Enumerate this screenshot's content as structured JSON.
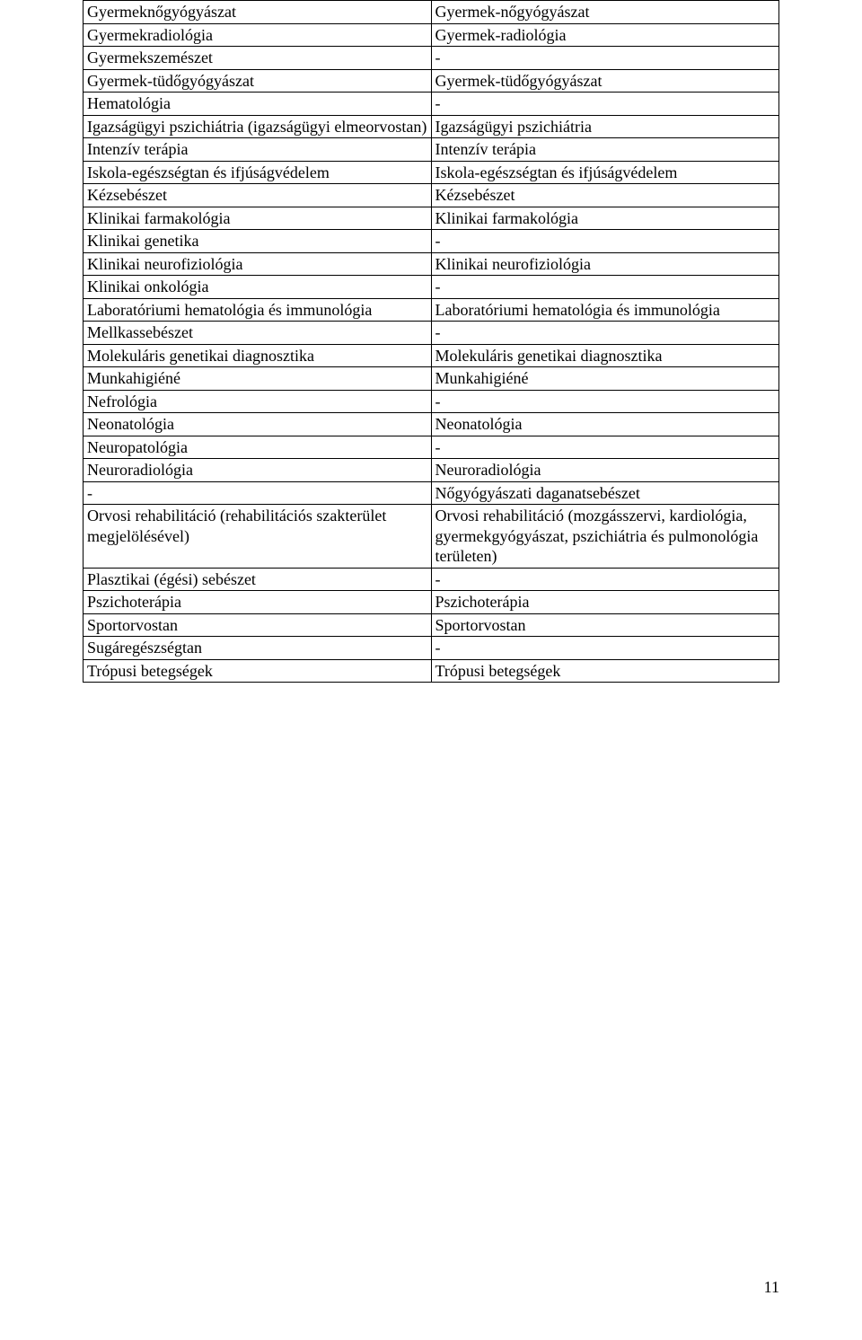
{
  "table": {
    "columns": [
      "left",
      "right"
    ],
    "rows": [
      [
        "Gyermeknőgyógyászat",
        "Gyermek-nőgyógyászat"
      ],
      [
        "Gyermekradiológia",
        "Gyermek-radiológia"
      ],
      [
        "Gyermekszemészet",
        "-"
      ],
      [
        "Gyermek-tüdőgyógyászat",
        "Gyermek-tüdőgyógyászat"
      ],
      [
        "Hematológia",
        "-"
      ],
      [
        "Igazságügyi pszichiátria (igazságügyi elmeorvostan)",
        "Igazságügyi pszichiátria"
      ],
      [
        "Intenzív terápia",
        "Intenzív terápia"
      ],
      [
        "Iskola-egészségtan és ifjúságvédelem",
        "Iskola-egészségtan és ifjúságvédelem"
      ],
      [
        "Kézsebészet",
        "Kézsebészet"
      ],
      [
        "Klinikai farmakológia",
        "Klinikai farmakológia"
      ],
      [
        "Klinikai genetika",
        "-"
      ],
      [
        "Klinikai neurofiziológia",
        "Klinikai neurofiziológia"
      ],
      [
        "Klinikai onkológia",
        "-"
      ],
      [
        "Laboratóriumi hematológia és immunológia",
        "Laboratóriumi hematológia és immunológia"
      ],
      [
        "Mellkassebészet",
        "-"
      ],
      [
        "Molekuláris genetikai diagnosztika",
        "Molekuláris genetikai diagnosztika"
      ],
      [
        "Munkahigiéné",
        "Munkahigiéné"
      ],
      [
        "Nefrológia",
        "-"
      ],
      [
        "Neonatológia",
        "Neonatológia"
      ],
      [
        "Neuropatológia",
        "-"
      ],
      [
        "Neuroradiológia",
        "Neuroradiológia"
      ],
      [
        "-",
        "Nőgyógyászati daganatsebészet"
      ],
      [
        "Orvosi rehabilitáció (rehabilitációs szakterület megjelölésével)",
        "Orvosi rehabilitáció (mozgásszervi, kardiológia, gyermekgyógyászat, pszichiátria és pulmonológia területen)"
      ],
      [
        "Plasztikai (égési) sebészet",
        "-"
      ],
      [
        "Pszichoterápia",
        "Pszichoterápia"
      ],
      [
        "Sportorvostan",
        "Sportorvostan"
      ],
      [
        "Sugáregészségtan",
        "-"
      ],
      [
        "Trópusi betegségek",
        "Trópusi betegségek"
      ]
    ],
    "font_family": "Times New Roman",
    "font_size_pt": 13,
    "border_color": "#000000",
    "text_color": "#000000",
    "background_color": "#ffffff"
  },
  "page_number": "11"
}
